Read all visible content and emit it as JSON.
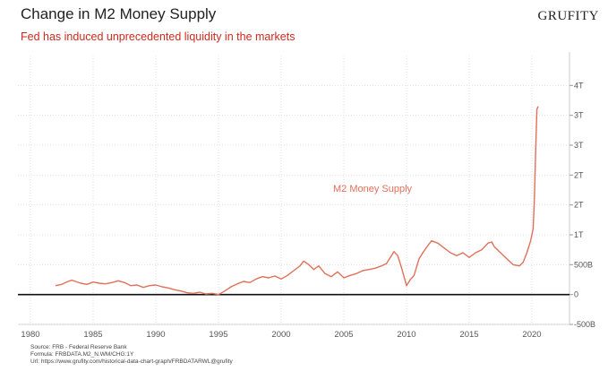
{
  "header": {
    "title": "Change in M2 Money Supply",
    "subtitle": "Fed has induced unprecedented liquidity in the markets",
    "brand": "GRUFITY"
  },
  "footer": {
    "source": "Source: FRB - Federal Reserve Bank",
    "formula": "Formula: FRBDATA.M2_N.WM/CHG:1Y",
    "url": "Url: https://www.grufity.com/historical-data-chart-graph/FRBDATARWL@grufity"
  },
  "colors": {
    "series": "#e0705a",
    "grid": "#e2e2e2",
    "zero_line": "#111111",
    "subtitle": "#cc2a1e"
  },
  "chart_data": {
    "type": "line",
    "title": "Change in M2 Money Supply",
    "subtitle": "Fed has induced unprecedented liquidity in the markets",
    "annotation": "M2 Money Supply",
    "xlim": [
      1979,
      2023
    ],
    "ylim": [
      -500000000000,
      4000000000000
    ],
    "x_ticks": [
      1980,
      1985,
      1990,
      1995,
      2000,
      2005,
      2010,
      2015,
      2020
    ],
    "y_ticks": [
      {
        "value": -500000000000,
        "label": "-500B"
      },
      {
        "value": 0,
        "label": "0"
      },
      {
        "value": 500000000000,
        "label": "500B"
      },
      {
        "value": 1000000000000,
        "label": "1T"
      },
      {
        "value": 1500000000000,
        "label": "2T"
      },
      {
        "value": 2000000000000,
        "label": "2T"
      },
      {
        "value": 2500000000000,
        "label": "3T"
      },
      {
        "value": 3000000000000,
        "label": "3T"
      },
      {
        "value": 3500000000000,
        "label": "4T"
      }
    ],
    "y_axis_side": "right",
    "grid": "dotted horizontal and vertical",
    "series": [
      {
        "name": "M2 Money Supply",
        "x": [
          1982.0,
          1982.5,
          1983.0,
          1983.3,
          1983.6,
          1984.0,
          1984.5,
          1985.0,
          1985.5,
          1986.0,
          1986.5,
          1987.0,
          1987.5,
          1988.0,
          1988.5,
          1989.0,
          1989.5,
          1990.0,
          1990.5,
          1991.0,
          1991.5,
          1992.0,
          1992.5,
          1993.0,
          1993.5,
          1994.0,
          1994.5,
          1995.0,
          1995.5,
          1996.0,
          1996.5,
          1997.0,
          1997.5,
          1998.0,
          1998.5,
          1999.0,
          1999.5,
          2000.0,
          2000.5,
          2001.0,
          2001.5,
          2001.8,
          2002.2,
          2002.6,
          2003.0,
          2003.5,
          2004.0,
          2004.5,
          2005.0,
          2005.5,
          2006.0,
          2006.5,
          2007.0,
          2007.5,
          2008.0,
          2008.4,
          2008.8,
          2009.0,
          2009.3,
          2009.6,
          2010.0,
          2010.3,
          2010.6,
          2011.0,
          2011.3,
          2011.7,
          2012.0,
          2012.5,
          2013.0,
          2013.5,
          2014.0,
          2014.5,
          2015.0,
          2015.5,
          2016.0,
          2016.5,
          2016.8,
          2017.0,
          2017.5,
          2018.0,
          2018.5,
          2019.0,
          2019.3,
          2019.6,
          2019.9,
          2020.0,
          2020.1,
          2020.2,
          2020.3,
          2020.4,
          2020.5
        ],
        "y": [
          150000000000.0,
          170000000000.0,
          220000000000.0,
          240000000000.0,
          220000000000.0,
          190000000000.0,
          170000000000.0,
          210000000000.0,
          190000000000.0,
          180000000000.0,
          200000000000.0,
          230000000000.0,
          200000000000.0,
          150000000000.0,
          160000000000.0,
          120000000000.0,
          150000000000.0,
          160000000000.0,
          130000000000.0,
          110000000000.0,
          80000000000.0,
          60000000000.0,
          30000000000.0,
          20000000000.0,
          40000000000.0,
          10000000000.0,
          20000000000.0,
          0,
          60000000000.0,
          130000000000.0,
          180000000000.0,
          220000000000.0,
          200000000000.0,
          260000000000.0,
          300000000000.0,
          280000000000.0,
          310000000000.0,
          260000000000.0,
          320000000000.0,
          400000000000.0,
          480000000000.0,
          560000000000.0,
          500000000000.0,
          420000000000.0,
          480000000000.0,
          350000000000.0,
          300000000000.0,
          380000000000.0,
          280000000000.0,
          320000000000.0,
          350000000000.0,
          400000000000.0,
          420000000000.0,
          440000000000.0,
          480000000000.0,
          520000000000.0,
          650000000000.0,
          720000000000.0,
          650000000000.0,
          450000000000.0,
          150000000000.0,
          250000000000.0,
          320000000000.0,
          600000000000.0,
          700000000000.0,
          820000000000.0,
          900000000000.0,
          860000000000.0,
          780000000000.0,
          700000000000.0,
          650000000000.0,
          700000000000.0,
          620000000000.0,
          700000000000.0,
          750000000000.0,
          860000000000.0,
          880000000000.0,
          800000000000.0,
          700000000000.0,
          600000000000.0,
          500000000000.0,
          480000000000.0,
          540000000000.0,
          700000000000.0,
          900000000000.0,
          1000000000000.0,
          1100000000000.0,
          1600000000000.0,
          2400000000000.0,
          3100000000000.0,
          3150000000000.0
        ]
      }
    ]
  }
}
